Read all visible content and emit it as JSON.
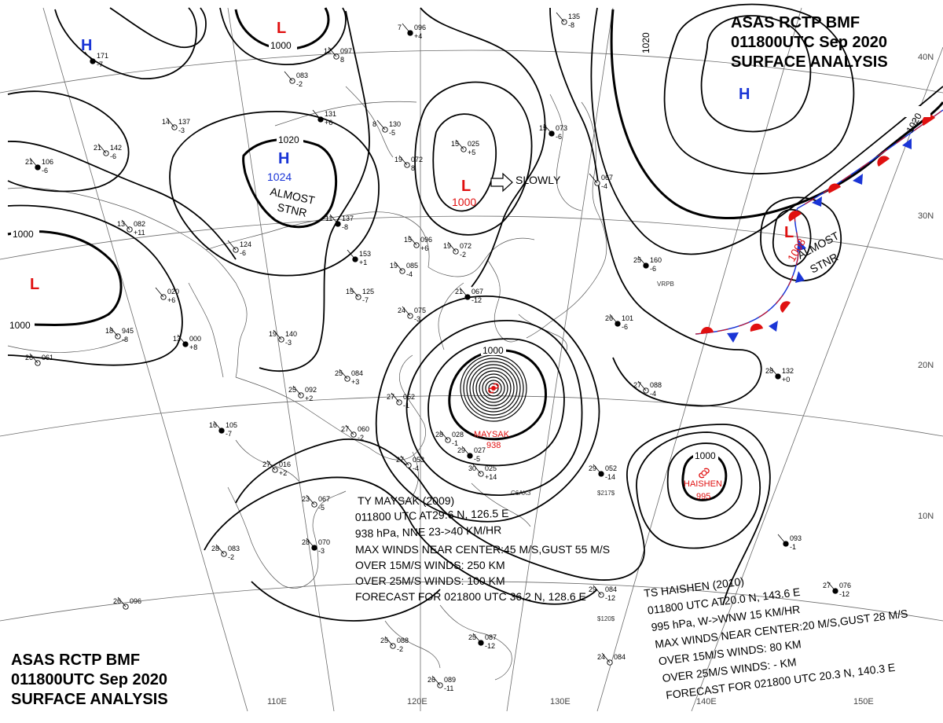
{
  "header_top": {
    "line1": "ASAS    RCTP    BMF",
    "line2": "011800UTC    Sep    2020",
    "line3": "SURFACE  ANALYSIS"
  },
  "header_bottom": {
    "line1": "ASAS     RCTP     BMF",
    "line2": "011800UTC     Sep     2020",
    "line3": "SURFACE  ANALYSIS"
  },
  "longitude_labels": [
    "110E",
    "120E",
    "130E",
    "140E",
    "150E"
  ],
  "latitude_labels": [
    "40N",
    "30N",
    "20N",
    "10N"
  ],
  "isobar_labels": {
    "top_1000": "1000",
    "top_1020_center": "1020",
    "top_1020_right_a": "1020",
    "top_1020_right_b": "1020",
    "west_1000_a": "1000",
    "west_1000_b": "1000",
    "maysak_1000": "1000",
    "haishen_1000": "1000"
  },
  "pressure_systems": [
    {
      "type": "H",
      "color": "#1a35d6",
      "value": ""
    },
    {
      "type": "L",
      "color": "#e01010",
      "value": ""
    },
    {
      "type": "H",
      "color": "#1a35d6",
      "value": "1024"
    },
    {
      "type": "L",
      "color": "#e01010",
      "value": "1000"
    },
    {
      "type": "H",
      "color": "#1a35d6",
      "value": ""
    },
    {
      "type": "L",
      "color": "#e01010",
      "value": ""
    },
    {
      "type": "L",
      "color": "#e01010",
      "value": "1008"
    }
  ],
  "annotations": {
    "almost_stnr_west": [
      "ALMOST",
      "STNR"
    ],
    "almost_stnr_east": [
      "ALMOST",
      "STNR"
    ],
    "slowly": "SLOWLY"
  },
  "storms": {
    "maysak": {
      "name": "MAYSAK",
      "pressure": "938"
    },
    "haishen": {
      "name": "HAISHEN",
      "pressure": "995"
    }
  },
  "maysak_bulletin": [
    "TY  MAYSAK  (2009)",
    "011800 UTC  AT29.6 N, 126.5 E",
    "938 hPa, NNE  23->40 KM/HR",
    "MAX WINDS NEAR CENTER:45 M/S,GUST 55 M/S",
    "OVER 15M/S WINDS: 250 KM",
    "OVER 25M/S WINDS: 100 KM",
    "FORECAST FOR 021800 UTC 36.2 N, 128.6 E"
  ],
  "haishen_bulletin": [
    "TS  HAISHEN  (2010)",
    "011800 UTC  AT20.0 N, 143.6 E",
    "995 hPa, W->WNW  15 KM/HR",
    "MAX WINDS NEAR CENTER:20 M/S,GUST 28 M/S",
    "OVER 15M/S WINDS: 80 KM",
    "OVER 25M/S WINDS: - KM",
    "FORECAST FOR 021800 UTC 20.3 N, 140.3 E"
  ],
  "station_plots": [
    {
      "t": "7",
      "p": "096",
      "d": "+4"
    },
    {
      "t": "12",
      "p": "097",
      "d": "8"
    },
    {
      "t": "",
      "p": "083",
      "d": "-2"
    },
    {
      "t": "",
      "p": "171",
      "d": "-7"
    },
    {
      "t": "",
      "p": "135",
      "d": "-8"
    },
    {
      "t": "14",
      "p": "137",
      "d": "-3"
    },
    {
      "t": "",
      "p": "131",
      "d": "+6"
    },
    {
      "t": "8",
      "p": "130",
      "d": "-5"
    },
    {
      "t": "21",
      "p": "142",
      "d": "-6"
    },
    {
      "t": "21",
      "p": "106",
      "d": "-6"
    },
    {
      "t": "15",
      "p": "025",
      "d": "+5"
    },
    {
      "t": "19",
      "p": "072",
      "d": "8"
    },
    {
      "t": "15",
      "p": "073",
      "d": "-6"
    },
    {
      "t": "",
      "p": "067",
      "d": "-4"
    },
    {
      "t": "13",
      "p": "082",
      "d": "+11"
    },
    {
      "t": "11",
      "p": "137",
      "d": "-8"
    },
    {
      "t": "15",
      "p": "096",
      "d": "+6"
    },
    {
      "t": "19",
      "p": "072",
      "d": "-2"
    },
    {
      "t": "",
      "p": "153",
      "d": "+1"
    },
    {
      "t": "19",
      "p": "085",
      "d": "-4"
    },
    {
      "t": "",
      "p": "124",
      "d": "-6"
    },
    {
      "t": "25",
      "p": "160",
      "d": "-6"
    },
    {
      "t": "",
      "p": "020",
      "d": "+6"
    },
    {
      "t": "15",
      "p": "125",
      "d": "-7"
    },
    {
      "t": "21",
      "p": "067",
      "d": "-12"
    },
    {
      "t": "24",
      "p": "075",
      "d": "-3"
    },
    {
      "t": "18",
      "p": "945",
      "d": "-8"
    },
    {
      "t": "13",
      "p": "000",
      "d": "+8"
    },
    {
      "t": "19",
      "p": "140",
      "d": "-3"
    },
    {
      "t": "26",
      "p": "061",
      "d": ""
    },
    {
      "t": "26",
      "p": "101",
      "d": "-6"
    },
    {
      "t": "25",
      "p": "084",
      "d": "+3"
    },
    {
      "t": "27",
      "p": "088",
      "d": "-4"
    },
    {
      "t": "28",
      "p": "132",
      "d": "+0"
    },
    {
      "t": "27",
      "p": "052",
      "d": "-1"
    },
    {
      "t": "25",
      "p": "092",
      "d": "+2"
    },
    {
      "t": "16",
      "p": "105",
      "d": "-7"
    },
    {
      "t": "27",
      "p": "060",
      "d": "-2"
    },
    {
      "t": "28",
      "p": "028",
      "d": "-1"
    },
    {
      "t": "29",
      "p": "027",
      "d": "-5"
    },
    {
      "t": "27",
      "p": "053",
      "d": "-4"
    },
    {
      "t": "30",
      "p": "025",
      "d": "+14"
    },
    {
      "t": "29",
      "p": "052",
      "d": "-14"
    },
    {
      "t": "27",
      "p": "016",
      "d": "+2"
    },
    {
      "t": "23",
      "p": "067",
      "d": "-5"
    },
    {
      "t": "28",
      "p": "070",
      "d": "-3"
    },
    {
      "t": "28",
      "p": "083",
      "d": "-2"
    },
    {
      "t": "29",
      "p": "084",
      "d": "-12"
    },
    {
      "t": "27",
      "p": "076",
      "d": "-12"
    },
    {
      "t": "26",
      "p": "096",
      "d": ""
    },
    {
      "t": "25",
      "p": "088",
      "d": "-2"
    },
    {
      "t": "25",
      "p": "087",
      "d": "-12"
    },
    {
      "t": "26",
      "p": "089",
      "d": "-11"
    },
    {
      "t": "24",
      "p": "084",
      "d": ""
    },
    {
      "t": "",
      "p": "093",
      "d": "-1"
    }
  ],
  "ship_codes": [
    "C6AX3",
    "$217$",
    "$120$",
    "VRPB"
  ]
}
